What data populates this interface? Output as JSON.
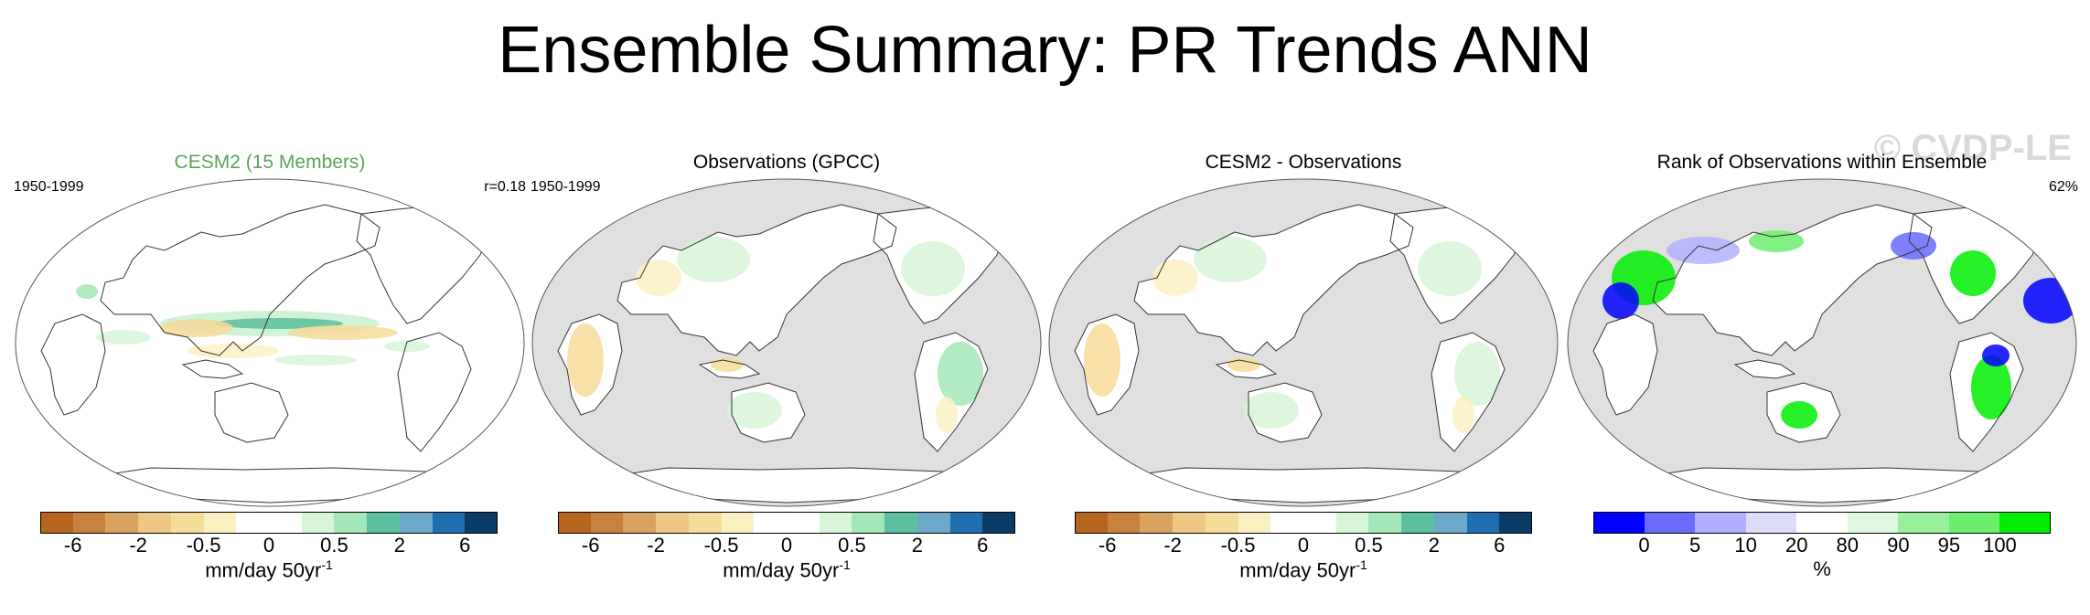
{
  "title": "Ensemble Summary: PR Trends ANN",
  "watermark": "© CVDP-LE",
  "panels": [
    {
      "title": "CESM2 (15 Members)",
      "title_color": "#5aa35a",
      "period": "1950-1999",
      "stat": "r=0.18",
      "ocean": "#ffffff"
    },
    {
      "title": "Observations (GPCC)",
      "title_color": "#000000",
      "period": "1950-1999",
      "stat": "",
      "ocean": "#e0e0e0"
    },
    {
      "title": "CESM2 - Observations",
      "title_color": "#000000",
      "period": "",
      "stat": "",
      "ocean": "#e0e0e0"
    },
    {
      "title": "Rank of Observations within Ensemble",
      "title_color": "#000000",
      "period": "",
      "stat": "62%",
      "ocean": "#e0e0e0"
    }
  ],
  "trend_colorbar": {
    "colors": [
      "#b5651d",
      "#c8823f",
      "#d9a35f",
      "#eec784",
      "#f6dc99",
      "#fbf0c2",
      "#ffffff",
      "#ffffff",
      "#d7f5d7",
      "#a3e6b8",
      "#5cbf9f",
      "#6ea8c9",
      "#1f6fb0",
      "#0b3c66"
    ],
    "ticks": [
      "-6",
      "-2",
      "-0.5",
      "0",
      "0.5",
      "2",
      "6"
    ],
    "units": "mm/day 50yr",
    "units_sup": "-1"
  },
  "rank_colorbar": {
    "colors": [
      "#0000ff",
      "#6a6aff",
      "#b0b0ff",
      "#dcdcf8",
      "#ffffff",
      "#dff7df",
      "#9af09a",
      "#6cef6c",
      "#00ee00"
    ],
    "ticks": [
      "0",
      "5",
      "10",
      "20",
      "80",
      "90",
      "95",
      "100"
    ],
    "units": "%"
  }
}
